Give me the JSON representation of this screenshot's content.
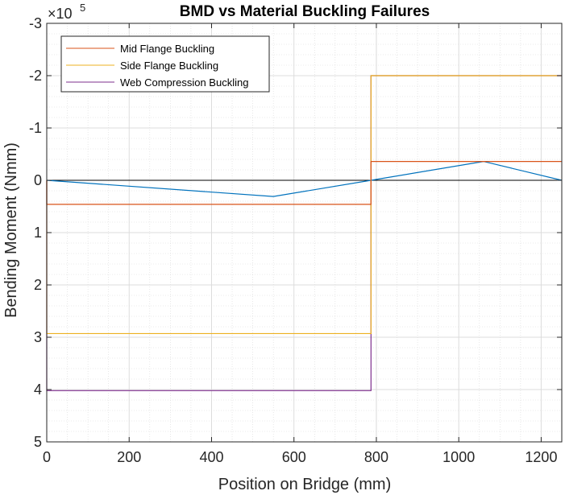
{
  "chart_data": {
    "type": "line",
    "title": "BMD vs Material Buckling Failures",
    "xlabel": "Position on Bridge (mm)",
    "ylabel": "Bending Moment (Nmm)",
    "xlim": [
      0,
      1250
    ],
    "ylim": [
      -300000,
      500000
    ],
    "y_reversed": true,
    "y_exponent_label": "×10",
    "y_exponent_power": "5",
    "grid": "major and minor",
    "legend_position": "top-left",
    "x_ticks": [
      0,
      200,
      400,
      600,
      800,
      1000,
      1200
    ],
    "x_tick_labels": [
      "0",
      "200",
      "400",
      "600",
      "800",
      "1000",
      "1200"
    ],
    "y_ticks": [
      -300000,
      -200000,
      -100000,
      0,
      100000,
      200000,
      300000,
      400000,
      500000
    ],
    "y_tick_labels": [
      "-3",
      "-2",
      "-1",
      "0",
      "1",
      "2",
      "3",
      "4",
      "5"
    ],
    "series": [
      {
        "name": "Mid Flange Buckling",
        "color": "#D95319",
        "x": [
          0,
          0,
          787,
          787,
          1250
        ],
        "y": [
          0,
          46000,
          46000,
          -36000,
          -36000
        ]
      },
      {
        "name": "Side Flange Buckling",
        "color": "#EDB120",
        "x": [
          0,
          0,
          787,
          787,
          1250
        ],
        "y": [
          0,
          293000,
          293000,
          -200000,
          -200000
        ]
      },
      {
        "name": "Web Compression Buckling",
        "color": "#7E2F8E",
        "x": [
          0,
          0,
          787,
          787,
          1250
        ],
        "y": [
          0,
          402000,
          402000,
          -200000,
          -200000
        ]
      },
      {
        "name": "",
        "color": "#0072BD",
        "x": [
          0,
          550,
          787,
          1060,
          1250
        ],
        "y": [
          0,
          31000,
          0,
          -36000,
          0
        ]
      }
    ]
  }
}
